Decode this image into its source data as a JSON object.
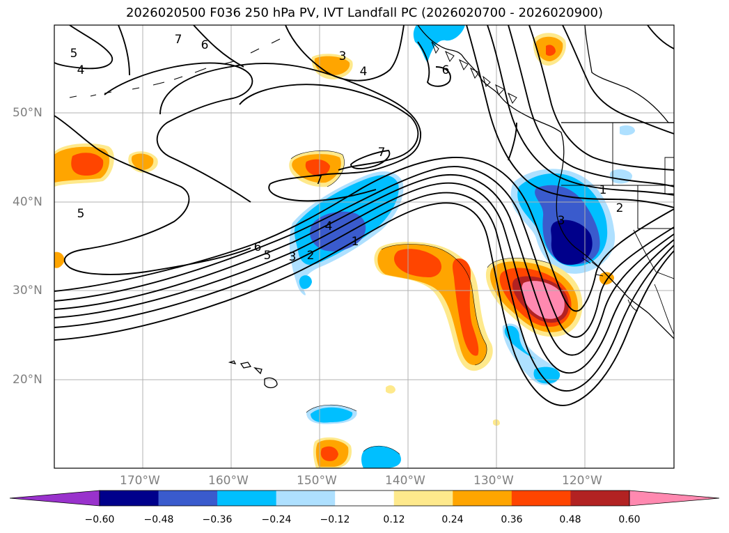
{
  "title": "2026020500 F036 250 hPa PV, IVT Landfall PC (2026020700 - 2026020900)",
  "lat_labels": [
    "50°N",
    "40°N",
    "30°N",
    "20°N"
  ],
  "lon_labels": [
    "170°W",
    "160°W",
    "150°W",
    "140°W",
    "130°W",
    "120°W"
  ],
  "colorbar": {
    "ticks": [
      "−0.60",
      "−0.48",
      "−0.36",
      "−0.24",
      "−0.12",
      "0.12",
      "0.24",
      "0.36",
      "0.48",
      "0.60"
    ],
    "colors": [
      "#9932cc",
      "#00008b",
      "#3a5bcd",
      "#00bfff",
      "#aee0ff",
      "#ffffff",
      "#fee98c",
      "#ffa500",
      "#ff4500",
      "#b22222",
      "#ff89b0"
    ]
  },
  "pv_contour_labels": [
    "7",
    "6",
    "5",
    "4",
    "3",
    "4",
    "6",
    "7",
    "7",
    "5",
    "6",
    "5",
    "3",
    "2",
    "4",
    "1",
    "1",
    "2",
    "3"
  ]
}
